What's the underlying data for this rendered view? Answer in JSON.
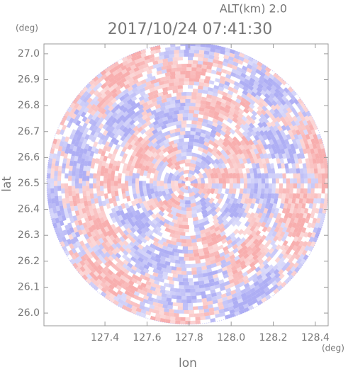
{
  "chart_data": {
    "type": "radar-ppi",
    "title": "2017/10/24 07:41:30",
    "subtitle": "ALT(km) 2.0",
    "x_label": "lon",
    "y_label": "lat",
    "x_unit": "(deg)",
    "y_unit": "(deg)",
    "xlim": [
      127.11,
      128.461
    ],
    "ylim": [
      25.951,
      27.038
    ],
    "xticks": [
      127.4,
      127.6,
      127.8,
      {
        "value": 128.0,
        "label": "128.0"
      },
      128.2,
      128.4
    ],
    "yticks": [
      {
        "value": 26.0,
        "label": "26.0"
      },
      26.1,
      26.2,
      26.3,
      26.4,
      26.5,
      26.6,
      26.7,
      26.8,
      26.9,
      {
        "value": 27.0,
        "label": "27.0"
      }
    ]
  }
}
